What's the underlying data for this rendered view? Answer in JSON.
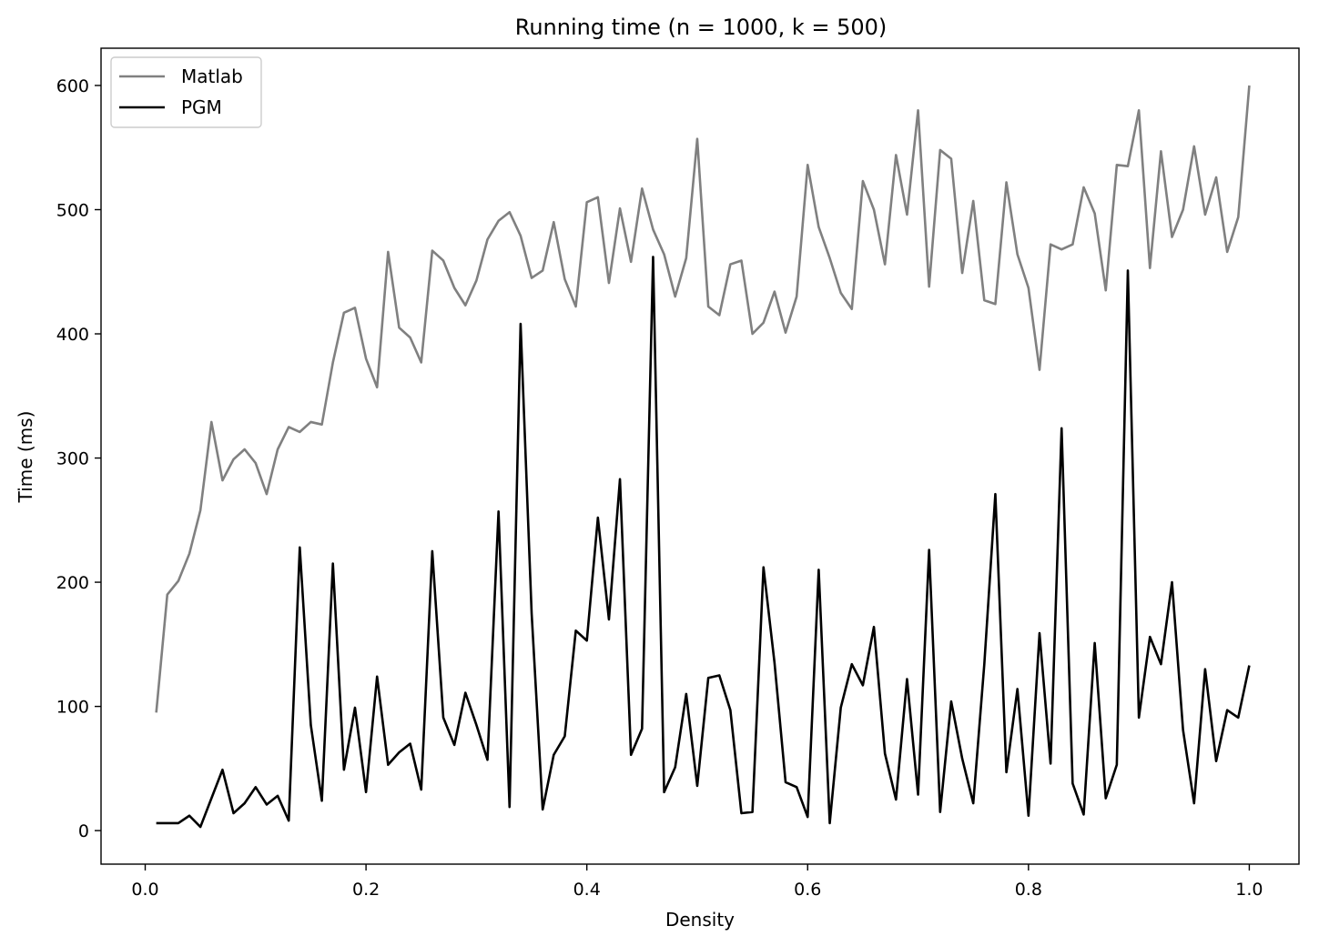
{
  "chart_data": {
    "type": "line",
    "title": "Running time (n = 1000, k = 500)",
    "xlabel": "Density",
    "ylabel": "Time (ms)",
    "xlim": [
      -0.04,
      1.045
    ],
    "ylim": [
      -27,
      630
    ],
    "xticks": [
      0.0,
      0.2,
      0.4,
      0.6,
      0.8,
      1.0
    ],
    "xtick_labels": [
      "0.0",
      "0.2",
      "0.4",
      "0.6",
      "0.8",
      "1.0"
    ],
    "yticks": [
      0,
      100,
      200,
      300,
      400,
      500,
      600
    ],
    "ytick_labels": [
      "0",
      "100",
      "200",
      "300",
      "400",
      "500",
      "600"
    ],
    "grid": false,
    "legend_position": "top-left",
    "x": [
      0.01,
      0.02,
      0.03,
      0.04,
      0.05,
      0.06,
      0.07,
      0.08,
      0.09,
      0.1,
      0.11,
      0.12,
      0.13,
      0.14,
      0.15,
      0.16,
      0.17,
      0.18,
      0.19,
      0.2,
      0.21,
      0.22,
      0.23,
      0.24,
      0.25,
      0.26,
      0.27,
      0.28,
      0.29,
      0.3,
      0.31,
      0.32,
      0.33,
      0.34,
      0.35,
      0.36,
      0.37,
      0.38,
      0.39,
      0.4,
      0.41,
      0.42,
      0.43,
      0.44,
      0.45,
      0.46,
      0.47,
      0.48,
      0.49,
      0.5,
      0.51,
      0.52,
      0.53,
      0.54,
      0.55,
      0.56,
      0.57,
      0.58,
      0.59,
      0.6,
      0.61,
      0.62,
      0.63,
      0.64,
      0.65,
      0.66,
      0.67,
      0.68,
      0.69,
      0.7,
      0.71,
      0.72,
      0.73,
      0.74,
      0.75,
      0.76,
      0.77,
      0.78,
      0.79,
      0.8,
      0.81,
      0.82,
      0.83,
      0.84,
      0.85,
      0.86,
      0.87,
      0.88,
      0.89,
      0.9,
      0.91,
      0.92,
      0.93,
      0.94,
      0.95,
      0.96,
      0.97,
      0.98,
      0.99,
      1.0
    ],
    "series": [
      {
        "name": "Matlab",
        "color": "#808080",
        "values": [
          95,
          190,
          201,
          223,
          258,
          329,
          282,
          299,
          307,
          296,
          271,
          307,
          325,
          321,
          329,
          327,
          377,
          417,
          421,
          380,
          357,
          466,
          405,
          397,
          377,
          467,
          459,
          437,
          423,
          443,
          476,
          491,
          498,
          479,
          445,
          451,
          490,
          444,
          422,
          506,
          510,
          441,
          501,
          458,
          517,
          484,
          464,
          430,
          461,
          557,
          422,
          415,
          456,
          459,
          400,
          409,
          434,
          401,
          430,
          536,
          486,
          461,
          433,
          420,
          523,
          500,
          456,
          544,
          496,
          580,
          438,
          548,
          541,
          449,
          507,
          427,
          424,
          522,
          464,
          437,
          371,
          472,
          468,
          472,
          518,
          497,
          435,
          536,
          535,
          580,
          453,
          547,
          478,
          500,
          551,
          496,
          526,
          466,
          494,
          600
        ]
      },
      {
        "name": "PGM",
        "color": "#000000",
        "values": [
          6,
          6,
          6,
          12,
          3,
          26,
          49,
          14,
          22,
          35,
          21,
          28,
          8,
          228,
          85,
          24,
          215,
          49,
          99,
          31,
          124,
          53,
          63,
          70,
          33,
          225,
          91,
          69,
          111,
          85,
          57,
          257,
          19,
          408,
          175,
          17,
          61,
          76,
          161,
          153,
          252,
          170,
          283,
          61,
          82,
          462,
          31,
          51,
          110,
          36,
          123,
          125,
          97,
          14,
          15,
          212,
          135,
          39,
          35,
          11,
          210,
          6,
          99,
          134,
          117,
          164,
          62,
          25,
          122,
          29,
          226,
          15,
          104,
          58,
          22,
          134,
          271,
          47,
          114,
          12,
          159,
          54,
          324,
          38,
          13,
          151,
          26,
          53,
          451,
          91,
          156,
          134,
          200,
          81,
          22,
          130,
          56,
          97,
          91,
          133
        ]
      }
    ]
  }
}
